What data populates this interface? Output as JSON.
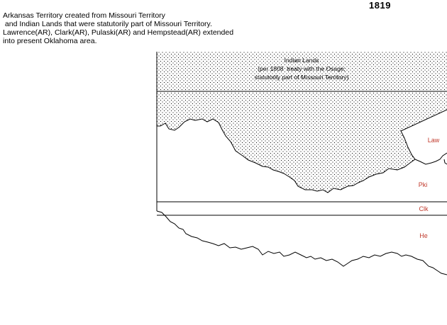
{
  "year": "1819",
  "caption": [
    "Arkansas Territory created from Missouri Territory",
    " and Indian Lands that were statutorily part of Missouri Territory.",
    "Lawrence(AR), Clark(AR), Pulaski(AR) and Hempstead(AR) extended",
    "into present Oklahoma area."
  ],
  "indian_lands": {
    "title": "Indian Lands",
    "line2": "(per 1808  treaty with the Osage;",
    "line3": "statutorily part of Missouri Territory)"
  },
  "counties": {
    "law": "Law",
    "pki": "Pki",
    "clk": "Clk",
    "he": "He"
  },
  "colors": {
    "line": "#000000",
    "county_label": "#c0392b",
    "stipple": "#000000",
    "background": "#ffffff"
  }
}
